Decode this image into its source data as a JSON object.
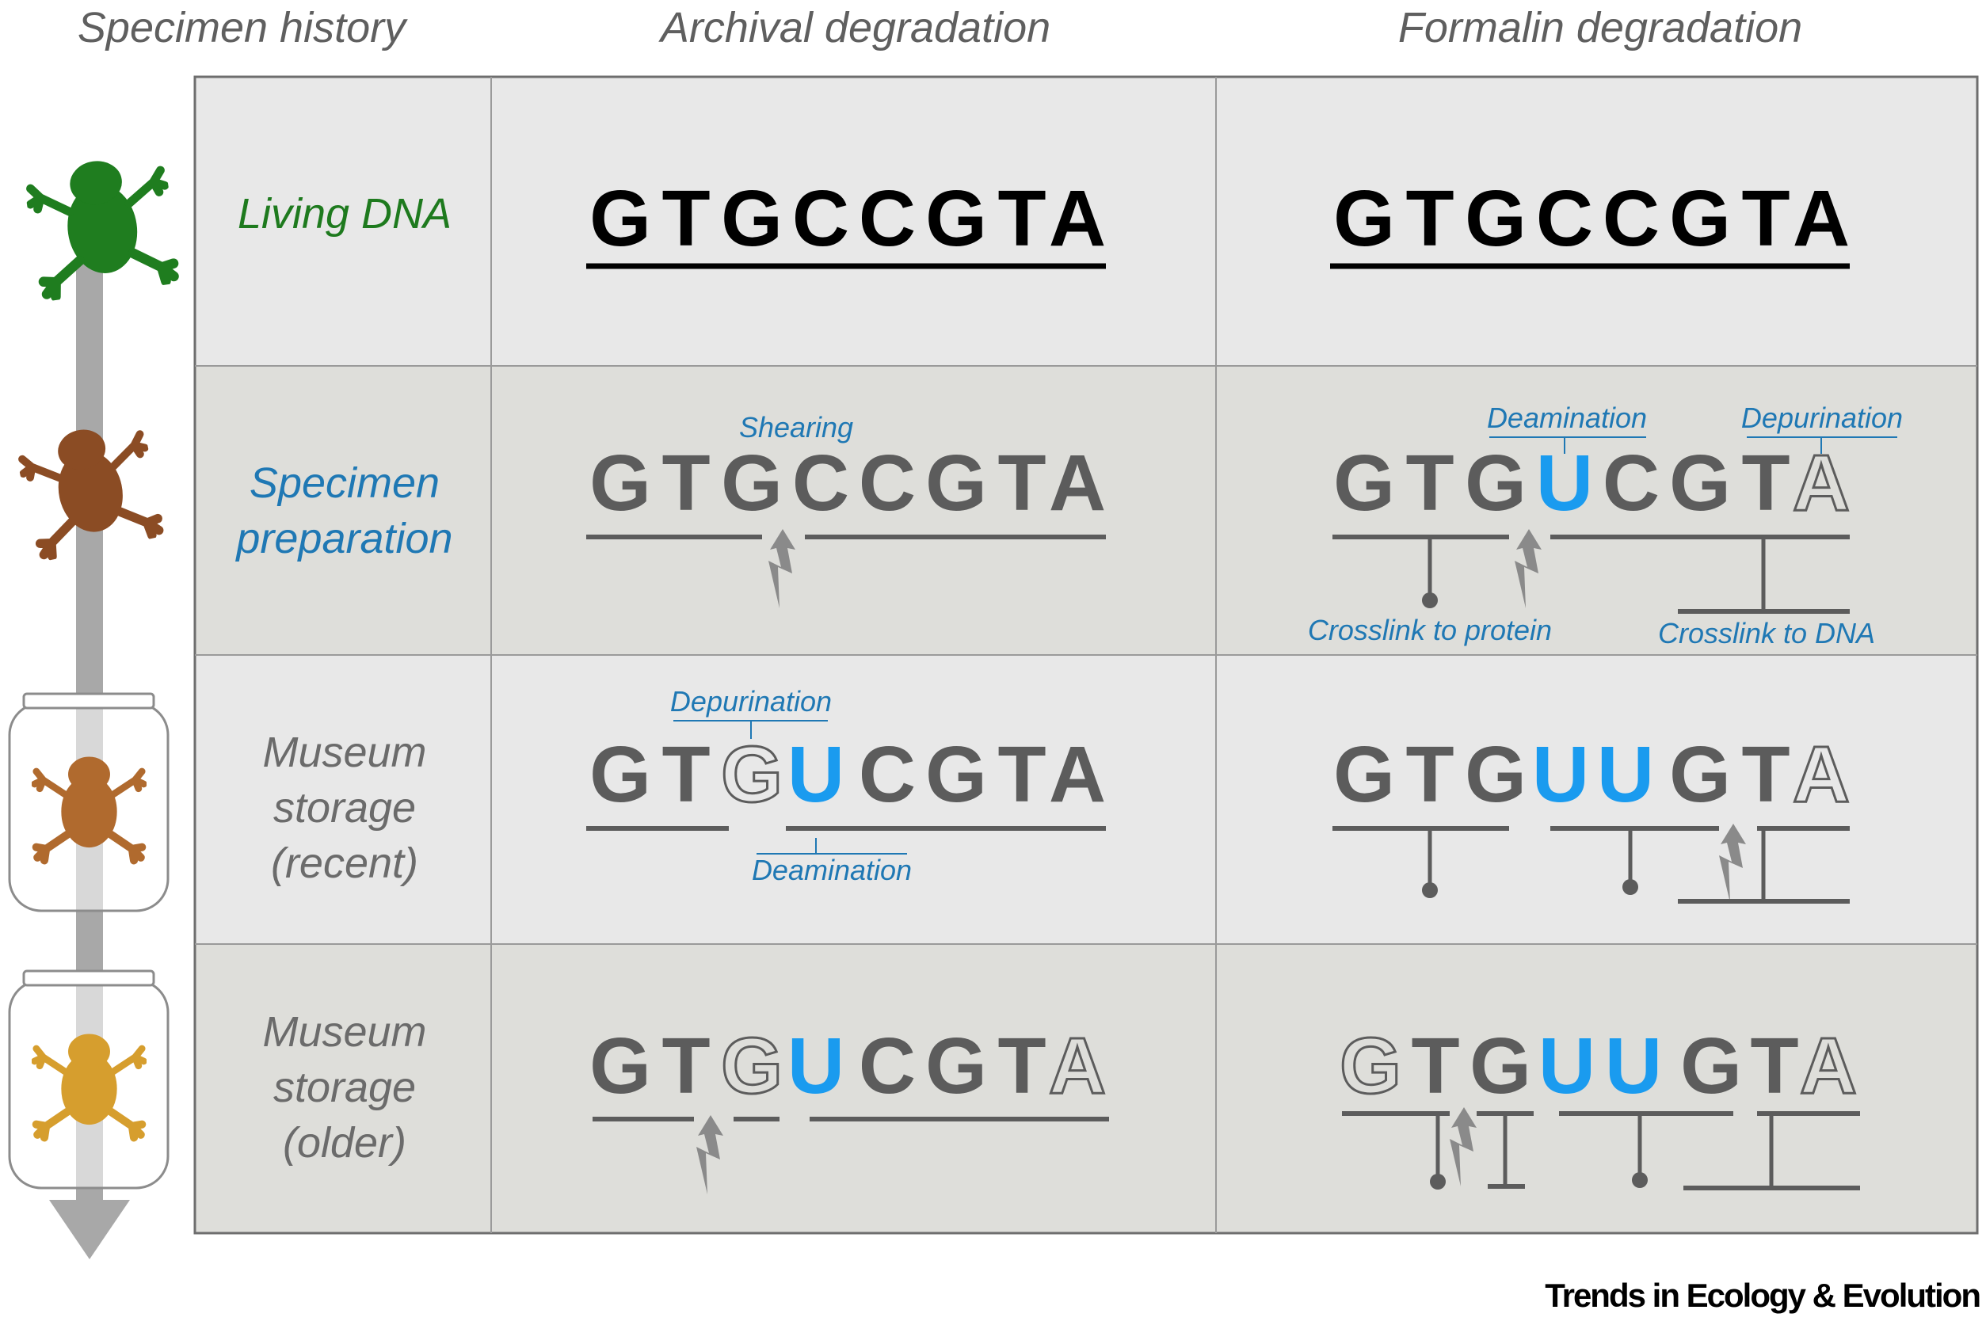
{
  "headers": {
    "history": "Specimen history",
    "archival": "Archival degradation",
    "formalin": "Formalin degradation"
  },
  "rows": [
    {
      "label": [
        "Living DNA"
      ],
      "color": "#1e7a1e"
    },
    {
      "label": [
        "Specimen",
        "preparation"
      ],
      "color": "#1f78b4"
    },
    {
      "label": [
        "Museum",
        "storage",
        "(recent)"
      ],
      "color": "#6b6b6b"
    },
    {
      "label": [
        "Museum",
        "storage",
        "(older)"
      ],
      "color": "#6b6b6b"
    }
  ],
  "sequence": [
    "G",
    "T",
    "G",
    "C",
    "C",
    "G",
    "T",
    "A"
  ],
  "annotations": {
    "shearing": "Shearing",
    "deamination": "Deamination",
    "depurination": "Depurination",
    "crosslink_protein": "Crosslink to protein",
    "crosslink_dna": "Crosslink to DNA"
  },
  "colors": {
    "living": "#1e7a1e",
    "annotation": "#1f78b4",
    "uracil": "#1a9bef",
    "base_dark": "#000000",
    "base_grey": "#5c5c5c",
    "cell_light": "#e8e8e8",
    "cell_dark": "#dededa",
    "frog_green": "#1f7d1f",
    "frog_brown": "#8b4c24",
    "frog_orange": "#b06a2e",
    "frog_yellow": "#d69e2e"
  },
  "cells": {
    "living_archival": [
      "G",
      "T",
      "G",
      "C",
      "C",
      "G",
      "T",
      "A"
    ],
    "living_formalin": [
      "G",
      "T",
      "G",
      "C",
      "C",
      "G",
      "T",
      "A"
    ],
    "prep_archival": [
      "G",
      "T",
      "G",
      "C",
      "C",
      "G",
      "T",
      "A"
    ],
    "prep_formalin": [
      "G",
      "T",
      "G",
      "U",
      "C",
      "G",
      "T",
      "A"
    ],
    "recent_archival": [
      "G",
      "T",
      "G",
      "U",
      "C",
      "G",
      "T",
      "A"
    ],
    "recent_formalin": [
      "G",
      "T",
      "G",
      "U",
      "U",
      "G",
      "T",
      "A"
    ],
    "older_archival": [
      "G",
      "T",
      "G",
      "U",
      "C",
      "G",
      "T",
      "A"
    ],
    "older_formalin": [
      "G",
      "T",
      "G",
      "U",
      "U",
      "G",
      "T",
      "A"
    ]
  },
  "footer": "Trends in Ecology & Evolution",
  "icons": [
    "frog-green-icon",
    "frog-brown-icon",
    "jar-frog-orange-icon",
    "jar-frog-yellow-icon",
    "time-arrow-icon",
    "lightning-break-icon"
  ]
}
